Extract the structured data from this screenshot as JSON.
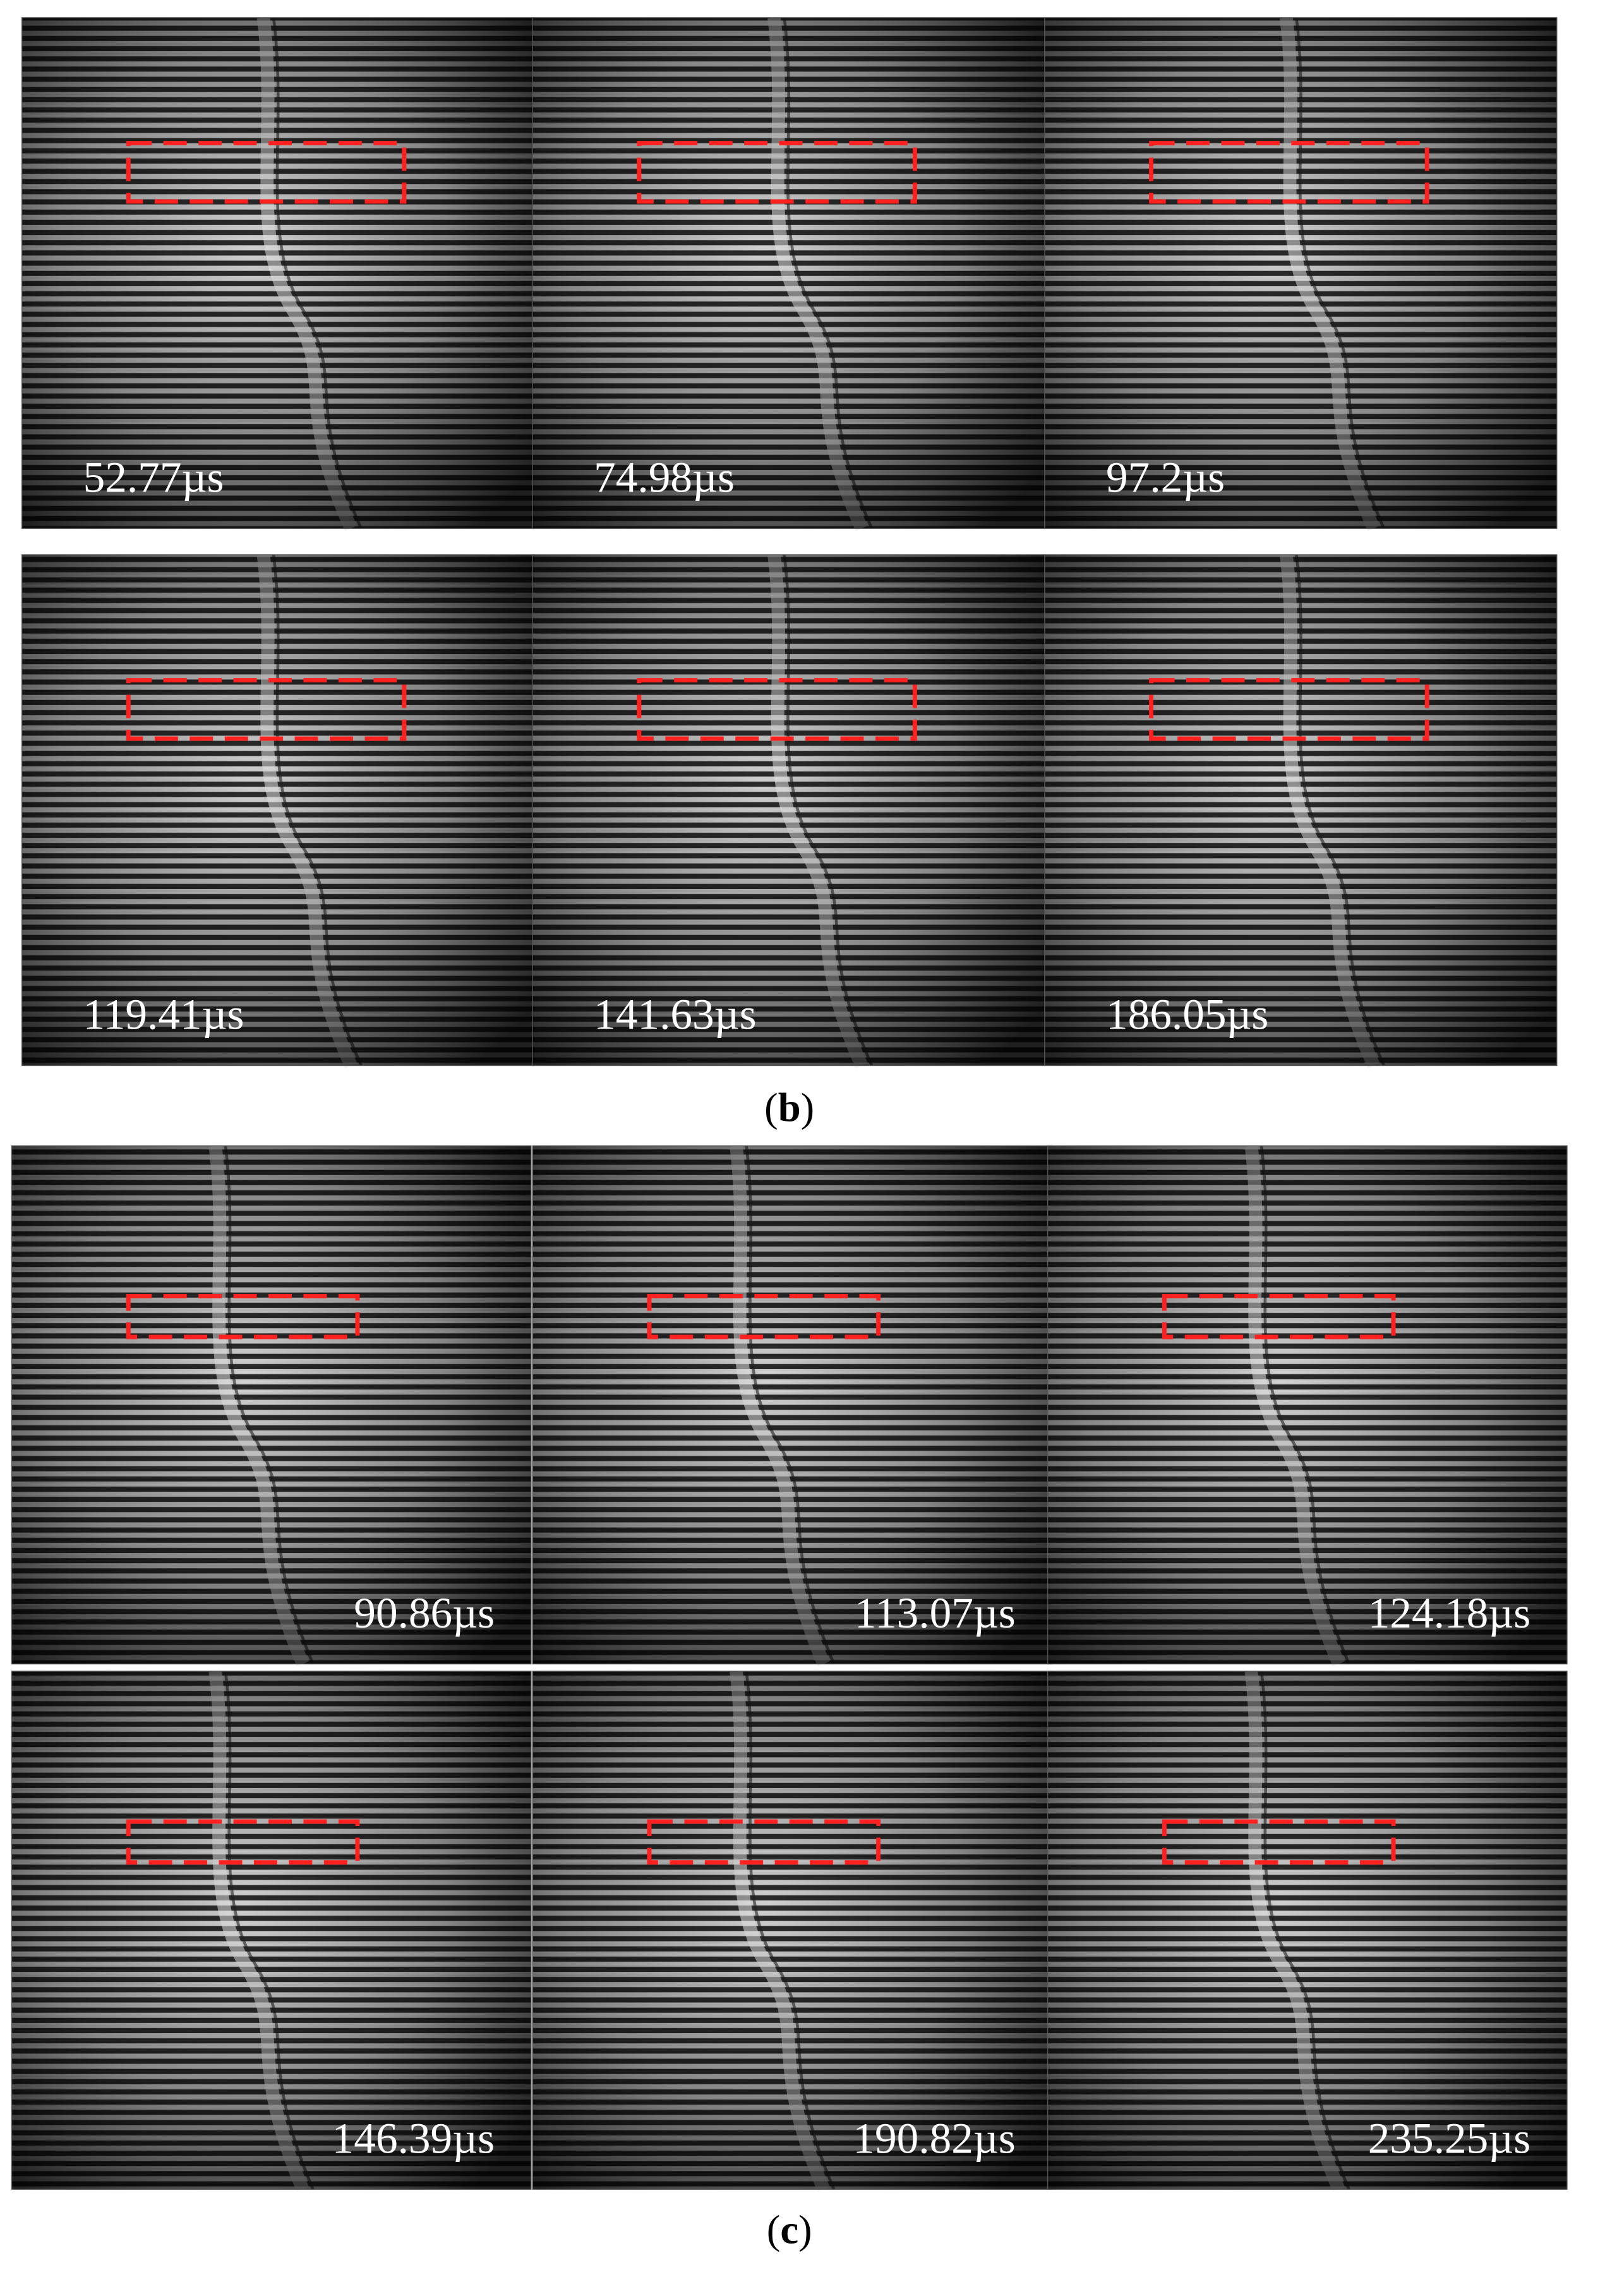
{
  "panels": [
    {
      "label": "b",
      "frames": [
        {
          "time": "52.77µs"
        },
        {
          "time": "74.98µs"
        },
        {
          "time": "97.2µs"
        },
        {
          "time": "119.41µs"
        },
        {
          "time": "141.63µs"
        },
        {
          "time": "186.05µs"
        }
      ]
    },
    {
      "label": "c",
      "frames": [
        {
          "time": "90.86µs"
        },
        {
          "time": "113.07µs"
        },
        {
          "time": "124.18µs"
        },
        {
          "time": "146.39µs"
        },
        {
          "time": "190.82µs"
        },
        {
          "time": "235.25µs"
        }
      ]
    }
  ]
}
